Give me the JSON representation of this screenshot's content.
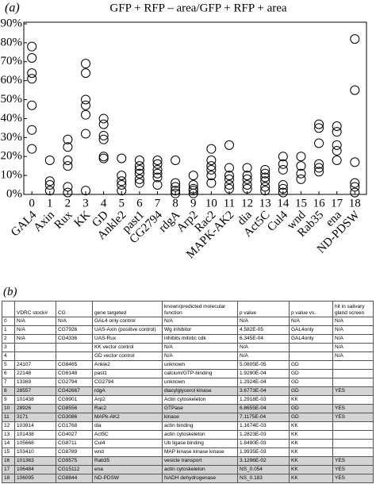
{
  "panel_a_label": "(a)",
  "panel_b_label": "(b)",
  "chart_data": {
    "type": "scatter",
    "title": "GFP + RFP – area/GFP + RFP + area",
    "xlim": [
      -0.45,
      18.65
    ],
    "xticks": [
      0,
      1,
      2,
      3,
      4,
      5,
      6,
      7,
      8,
      9,
      10,
      11,
      12,
      13,
      14,
      15,
      16,
      17,
      18
    ],
    "categories": [
      "GAL4",
      "Axin",
      "Rux",
      "KK",
      "GD",
      "Ankle2",
      "past1",
      "CG2794",
      "rdgA",
      "Arp2",
      "Rac2",
      "MAPK-AK2",
      "dia",
      "Act5C",
      "Cul4",
      "wnd",
      "Rab35",
      "ena",
      "ND-PDSW"
    ],
    "ylim": [
      0,
      90
    ],
    "yticks": [
      {
        "value": 0,
        "label": "0%"
      },
      {
        "value": 10,
        "label": "10%"
      },
      {
        "value": 20,
        "label": "20%"
      },
      {
        "value": 30,
        "label": "30%"
      },
      {
        "value": 40,
        "label": "40%"
      },
      {
        "value": 50,
        "label": "50%"
      },
      {
        "value": 60,
        "label": "60%"
      },
      {
        "value": 70,
        "label": "70%"
      },
      {
        "value": 80,
        "label": "80%"
      },
      {
        "value": 90,
        "label": "90%"
      }
    ],
    "grid": false,
    "series": [
      {
        "color": "#000000",
        "x": [
          0,
          0,
          0,
          0,
          0,
          0,
          0,
          1,
          1,
          1,
          1,
          2,
          2,
          2,
          2,
          2,
          2,
          3,
          3,
          3,
          3,
          3,
          3,
          3,
          4,
          4,
          4,
          4,
          4,
          4,
          5,
          5,
          5,
          5,
          5,
          6,
          6,
          6,
          6,
          6,
          6,
          7,
          7,
          7,
          7,
          7,
          7,
          8,
          8,
          8,
          8,
          8,
          9,
          9,
          9,
          9,
          9,
          10,
          10,
          10,
          10,
          10,
          10,
          11,
          11,
          11,
          11,
          11,
          11,
          12,
          12,
          12,
          12,
          12,
          13,
          13,
          13,
          13,
          13,
          13,
          14,
          14,
          14,
          14,
          14,
          14,
          15,
          15,
          15,
          15,
          16,
          16,
          16,
          16,
          16,
          16,
          17,
          17,
          17,
          17,
          17,
          18,
          18,
          18,
          18,
          18,
          18
        ],
        "values": [
          78,
          72,
          64,
          61,
          47,
          34,
          24,
          18,
          7,
          5,
          2,
          29,
          25,
          18,
          15,
          4,
          1,
          69,
          64,
          50,
          47,
          42,
          32,
          2,
          40,
          37,
          31,
          29,
          20,
          19,
          19,
          10,
          7,
          5,
          2,
          18,
          15,
          13,
          11,
          8,
          6,
          18,
          16,
          13,
          11,
          9,
          5,
          18,
          6,
          4,
          2,
          0.5,
          10,
          5,
          3,
          2,
          0.5,
          24,
          18,
          15,
          13,
          10,
          6,
          26,
          14,
          10,
          8,
          5,
          3,
          14,
          10,
          8,
          5,
          3,
          13,
          11,
          9,
          7,
          4,
          2,
          20,
          16,
          13,
          5,
          3,
          1,
          20,
          15,
          11,
          8,
          37,
          35,
          27,
          16,
          14,
          12,
          36,
          33,
          26,
          23,
          18,
          82,
          55,
          17,
          6,
          4,
          1
        ]
      }
    ]
  },
  "table": {
    "header": [
      "",
      "VDRC stock#",
      "CG",
      "gene targeted",
      "known/predicted molecular function",
      "p value",
      "p value vs.",
      "hit in salivary gland screen"
    ],
    "rows": [
      [
        "0",
        "N/A",
        "N/A",
        "GAL4 only control",
        "N/A",
        "N/A",
        "N/A",
        "N/A"
      ],
      [
        "1",
        "N/A",
        "CG7926",
        "UAS-Axin (positive control)",
        "Wg inhibitor",
        "4.582E-05",
        "GAL4only",
        "N/A"
      ],
      [
        "2",
        "N/A",
        "CG4336",
        "UAS-Rux",
        "inhibits mitotic cdk",
        "6.345E-04",
        "GAL4only",
        "N/A"
      ],
      [
        "3",
        "",
        "",
        "KK vector control",
        "N/A",
        "N/A",
        "",
        "N/A"
      ],
      [
        "4",
        "",
        "",
        "GD vector control",
        "N/A",
        "N/A",
        "",
        "N/A"
      ],
      [
        "5",
        "24107",
        "CG8465",
        "Ankle2",
        "unknown",
        "5.0805E-05",
        "GD",
        ""
      ],
      [
        "6",
        "22148",
        "CG6148",
        "past1",
        "calcium/GTP-binding",
        "1.9290E-04",
        "GD",
        ""
      ],
      [
        "7",
        "13369",
        "CG2794",
        "CG2794",
        "unknown",
        "1.2924E-04",
        "GD",
        ""
      ],
      [
        "8",
        "28557",
        "CG42667",
        "rdgA",
        "diacylglycerol kinase",
        "3.6773E-04",
        "GD",
        "YES"
      ],
      [
        "9",
        "101438",
        "CG9901",
        "Arp2",
        "Actin cytoskeleton",
        "1.2918E-03",
        "KK",
        ""
      ],
      [
        "10",
        "28926",
        "CG8556",
        "Rac2",
        "GTPase",
        "6.8655E-04",
        "GD",
        "YES"
      ],
      [
        "11",
        "3171",
        "CG3086",
        "MAPk-AK2",
        "kinase",
        "7.1175E-04",
        "GD",
        "YES"
      ],
      [
        "12",
        "103914",
        "CG1768",
        "dia",
        "actin binding",
        "1.1674E-03",
        "KK",
        ""
      ],
      [
        "13",
        "101438",
        "CG4027",
        "Act5C",
        "actin cytoskeleton",
        "1.2823E-03",
        "KK",
        ""
      ],
      [
        "14",
        "105668",
        "CG8711",
        "Cul4",
        "Ub ligase binding",
        "1.8490E-03",
        "KK",
        ""
      ],
      [
        "15",
        "103410",
        "CG8789",
        "wnd",
        "MAP kinase kinase kinase",
        "1.9935E-03",
        "KK",
        ""
      ],
      [
        "16",
        "101363",
        "CG9575",
        "Rab35",
        "vesicle transport",
        "3.1296E-02",
        "KK",
        "YES"
      ],
      [
        "17",
        "106484",
        "CG15112",
        "ena",
        "actin cytoskeleton",
        "NS_0.054",
        "KK",
        "YES"
      ],
      [
        "18",
        "106095",
        "CG8844",
        "ND-PDSW",
        "NADH dehydrogenase",
        "NS_0.183",
        "KK",
        "YES"
      ]
    ]
  }
}
